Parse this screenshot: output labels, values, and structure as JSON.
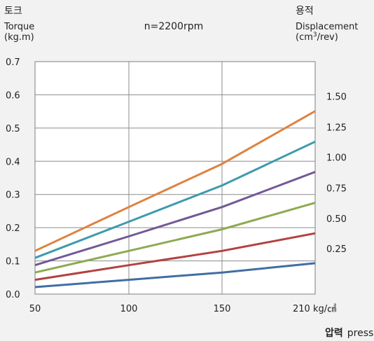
{
  "chart_data": {
    "type": "line",
    "top_labels": {
      "left_title_ko": "토크",
      "left_title_en": "Torque",
      "left_unit": "(kg.m)",
      "center": "n=2200rpm",
      "right_title_ko": "용적",
      "right_title_en": "Displacement",
      "right_unit_pre": "(cm",
      "right_unit_sup": "3",
      "right_unit_post": "/rev)"
    },
    "x_ticks": [
      "50",
      "100",
      "150",
      "210 kg/㎠"
    ],
    "x_title_ko": "압력",
    "x_title_en": "pressure",
    "y_ticks": [
      "0.0",
      "0.1",
      "0.2",
      "0.3",
      "0.4",
      "0.5",
      "0.6",
      "0.7"
    ],
    "ylim": [
      0,
      0.7
    ],
    "grid": true,
    "series": [
      {
        "name": "0.25",
        "color": "#3f6fa3",
        "values": [
          0.021,
          0.043,
          0.065,
          0.093
        ]
      },
      {
        "name": "0.50",
        "color": "#b3413f",
        "values": [
          0.043,
          0.087,
          0.13,
          0.183
        ]
      },
      {
        "name": "0.75",
        "color": "#8daa52",
        "values": [
          0.065,
          0.13,
          0.195,
          0.275
        ]
      },
      {
        "name": "1.00",
        "color": "#735896",
        "values": [
          0.087,
          0.174,
          0.262,
          0.368
        ]
      },
      {
        "name": "1.25",
        "color": "#3f9aae",
        "values": [
          0.109,
          0.218,
          0.327,
          0.459
        ]
      },
      {
        "name": "1.50",
        "color": "#df8240",
        "values": [
          0.13,
          0.262,
          0.392,
          0.551
        ]
      }
    ]
  }
}
